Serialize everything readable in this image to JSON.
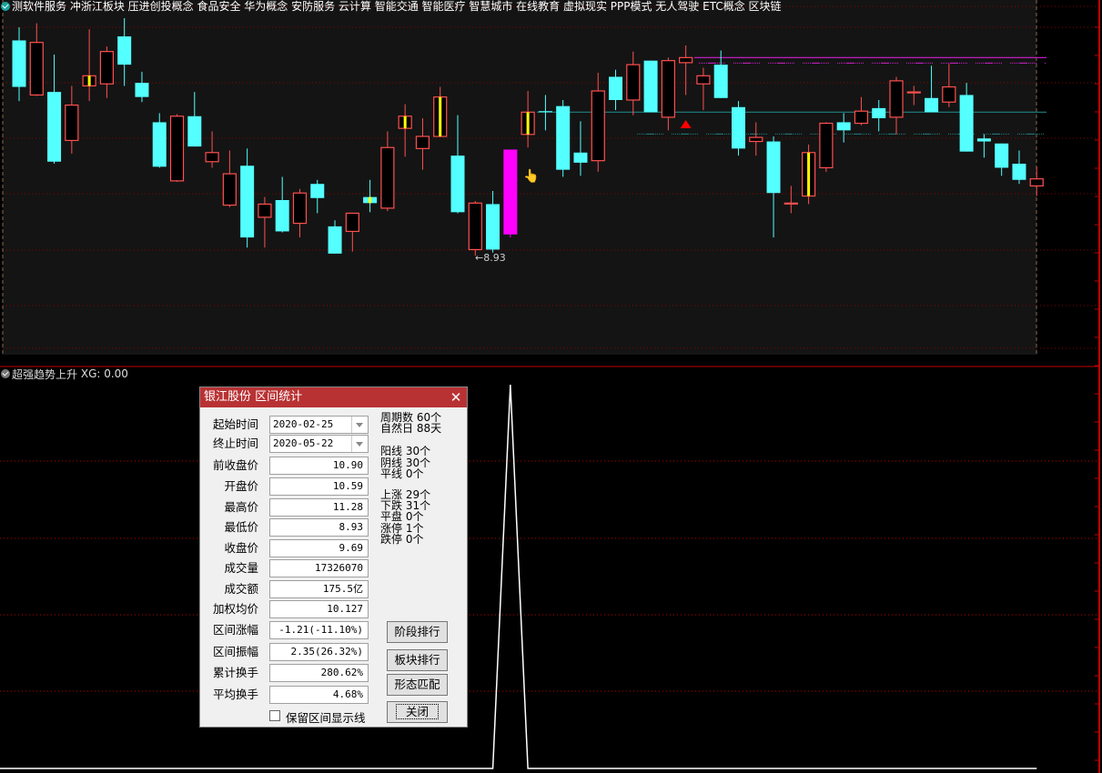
{
  "top_bar": {
    "concepts_text": "测软件服务 冲浙江板块 压进创投概念 食品安全 华为概念 安防服务 云计算 智能交通 智能医疗 智慧城市 在线教育 虚拟现实 PPP模式 无人驾驶 ETC概念 区块链",
    "icon": "check-circle-icon"
  },
  "main_chart": {
    "low_marker": "8.93",
    "colors": {
      "up": "#ff5050",
      "down": "#54ffff",
      "limit_up": "#ff00ff",
      "highlight": "#ffff00",
      "grid": "#8b0000",
      "bg": "#141414"
    },
    "levels": [
      {
        "price": 10.89,
        "color": "#d020d0"
      },
      {
        "price": 10.35,
        "color": "#208080"
      }
    ],
    "signal_marker_index": 38,
    "highlight_candles": [
      4,
      20,
      22,
      24,
      29,
      45
    ],
    "limit_up_candle": 28,
    "candles": [
      [
        11.06,
        11.19,
        10.46,
        10.6
      ],
      [
        10.52,
        11.23,
        10.51,
        11.04
      ],
      [
        10.55,
        10.92,
        9.84,
        9.86
      ],
      [
        10.07,
        10.61,
        9.94,
        10.42
      ],
      [
        10.61,
        11.17,
        10.46,
        10.71
      ],
      [
        10.63,
        11.0,
        10.49,
        10.95
      ],
      [
        11.1,
        11.28,
        10.61,
        10.82
      ],
      [
        10.64,
        10.75,
        10.45,
        10.5
      ],
      [
        10.25,
        10.34,
        9.8,
        9.81
      ],
      [
        9.67,
        10.33,
        9.66,
        10.31
      ],
      [
        10.31,
        10.55,
        10.01,
        10.01
      ],
      [
        9.86,
        10.16,
        9.8,
        9.95
      ],
      [
        9.43,
        9.97,
        9.41,
        9.74
      ],
      [
        9.82,
        9.99,
        9.01,
        9.11
      ],
      [
        9.31,
        9.51,
        9.01,
        9.44
      ],
      [
        9.48,
        9.71,
        9.16,
        9.17
      ],
      [
        9.25,
        9.59,
        9.11,
        9.55
      ],
      [
        9.64,
        9.68,
        9.35,
        9.5
      ],
      [
        9.22,
        9.28,
        8.95,
        8.95
      ],
      [
        9.17,
        9.35,
        8.97,
        9.35
      ],
      [
        9.51,
        9.68,
        9.36,
        9.45
      ],
      [
        9.4,
        10.16,
        9.37,
        10.0
      ],
      [
        10.19,
        10.43,
        9.91,
        10.31
      ],
      [
        9.99,
        10.29,
        9.78,
        10.11
      ],
      [
        10.11,
        10.6,
        10.11,
        10.5
      ],
      [
        9.92,
        10.32,
        9.35,
        9.36
      ],
      [
        8.99,
        9.47,
        8.93,
        9.45
      ],
      [
        9.44,
        9.57,
        8.96,
        8.99
      ],
      [
        9.14,
        9.98,
        9.11,
        9.98
      ],
      [
        10.13,
        10.56,
        10.0,
        10.35
      ],
      [
        10.36,
        10.52,
        10.17,
        10.35
      ],
      [
        10.41,
        10.47,
        9.71,
        9.78
      ],
      [
        9.95,
        10.26,
        9.72,
        9.85
      ],
      [
        9.87,
        10.74,
        9.76,
        10.56
      ],
      [
        10.7,
        10.77,
        10.37,
        10.47
      ],
      [
        10.47,
        10.95,
        10.32,
        10.82
      ],
      [
        10.86,
        10.86,
        10.35,
        10.35
      ],
      [
        10.3,
        10.89,
        10.17,
        10.86
      ],
      [
        10.84,
        11.01,
        10.52,
        10.89
      ],
      [
        10.63,
        10.79,
        10.37,
        10.71
      ],
      [
        10.82,
        10.96,
        10.49,
        10.49
      ],
      [
        10.4,
        10.46,
        9.92,
        9.99
      ],
      [
        10.06,
        10.25,
        9.92,
        10.1
      ],
      [
        10.06,
        10.11,
        9.11,
        9.55
      ],
      [
        9.45,
        9.62,
        9.35,
        9.45
      ],
      [
        9.52,
        10.03,
        9.44,
        9.95
      ],
      [
        9.8,
        10.25,
        9.76,
        10.24
      ],
      [
        10.25,
        10.34,
        10.05,
        10.17
      ],
      [
        10.24,
        10.5,
        10.22,
        10.36
      ],
      [
        10.39,
        10.47,
        10.16,
        10.29
      ],
      [
        10.3,
        10.7,
        10.13,
        10.66
      ],
      [
        10.55,
        10.61,
        10.42,
        10.55
      ],
      [
        10.49,
        10.81,
        10.35,
        10.35
      ],
      [
        10.45,
        10.83,
        10.4,
        10.6
      ],
      [
        10.52,
        10.64,
        9.96,
        9.96
      ],
      [
        10.09,
        10.13,
        9.9,
        10.06
      ],
      [
        10.04,
        10.04,
        9.72,
        9.8
      ],
      [
        9.84,
        9.97,
        9.64,
        9.68
      ],
      [
        9.62,
        9.81,
        9.52,
        9.69
      ]
    ]
  },
  "indicator": {
    "name": "超强趋势上升",
    "value_label": "XG: 0.00",
    "series_color": "#ffffff",
    "xg_nonzero": {
      "index": 28,
      "value": 1
    }
  },
  "dialog": {
    "title": "银江股份 区间统计",
    "close_icon": "close-icon",
    "fields": [
      {
        "label": "起始时间",
        "value": "2020-02-25",
        "type": "combo"
      },
      {
        "label": "终止时间",
        "value": "2020-05-22",
        "type": "combo"
      },
      {
        "label": "前收盘价",
        "value": "10.90"
      },
      {
        "label": "开盘价",
        "value": "10.59"
      },
      {
        "label": "最高价",
        "value": "11.28"
      },
      {
        "label": "最低价",
        "value": "8.93"
      },
      {
        "label": "收盘价",
        "value": "9.69"
      },
      {
        "label": "成交量",
        "value": "17326070"
      },
      {
        "label": "成交额",
        "value": "175.5亿"
      },
      {
        "label": "加权均价",
        "value": "10.127"
      },
      {
        "label": "区间涨幅",
        "value": "-1.21(-11.10%)"
      },
      {
        "label": "区间振幅",
        "value": "2.35(26.32%)"
      },
      {
        "label": "累计换手",
        "value": "280.62%"
      },
      {
        "label": "平均换手",
        "value": "4.68%"
      }
    ],
    "stats": [
      {
        "label": "周期数",
        "value": "60个"
      },
      {
        "label": "自然日",
        "value": "88天"
      },
      {
        "label": "阳线",
        "value": "30个"
      },
      {
        "label": "阴线",
        "value": "30个"
      },
      {
        "label": "平线",
        "value": "0个"
      },
      {
        "label": "上涨",
        "value": "29个"
      },
      {
        "label": "下跌",
        "value": "31个"
      },
      {
        "label": "平盘",
        "value": "0个"
      },
      {
        "label": "涨停",
        "value": "1个"
      },
      {
        "label": "跌停",
        "value": "0个"
      }
    ],
    "buttons": [
      "阶段排行",
      "板块排行",
      "形态匹配",
      "关闭"
    ],
    "checkbox": {
      "label": "保留区间显示线",
      "checked": false
    }
  }
}
